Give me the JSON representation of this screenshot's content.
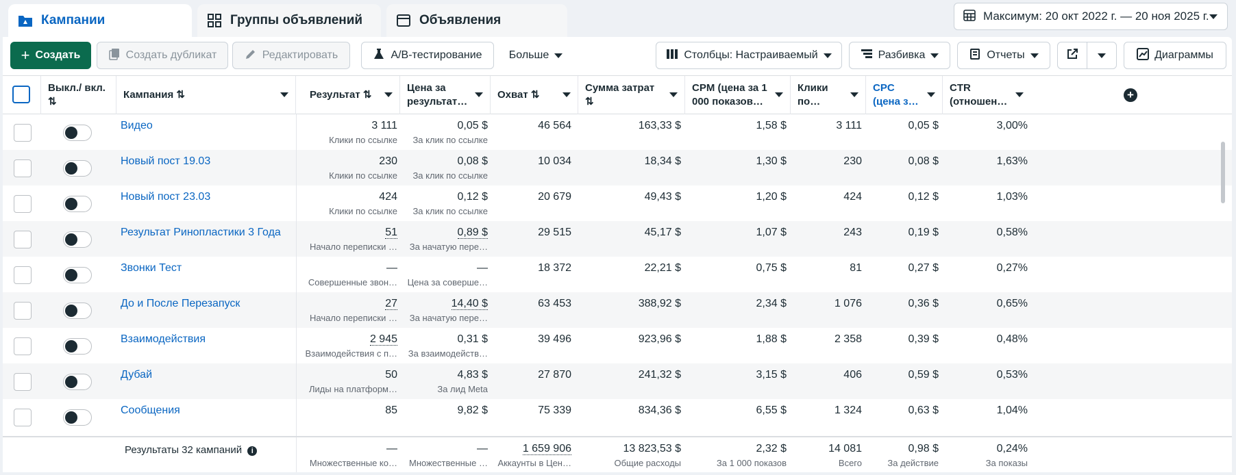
{
  "tabs": [
    {
      "label": "Кампании",
      "icon": "folder-icon"
    },
    {
      "label": "Группы объявлений",
      "icon": "grid-icon"
    },
    {
      "label": "Объявления",
      "icon": "window-icon"
    }
  ],
  "date_range": "Максимум: 20 окт 2022 г. — 20 ноя 2025 г.",
  "toolbar": {
    "create": "Создать",
    "duplicate": "Создать дубликат",
    "edit": "Редактировать",
    "ab_test": "A/B-тестирование",
    "more": "Больше",
    "columns": "Столбцы: Настраиваемый",
    "breakdown": "Разбивка",
    "reports": "Отчеты",
    "charts": "Диаграммы"
  },
  "columns": {
    "toggle": "Выкл./ вкл.",
    "campaign": "Кампания",
    "result": "Результат",
    "cost_per_result": "Цена за результат…",
    "reach": "Охват",
    "spend": "Сумма затрат",
    "cpm": "CPM (цена за 1 000 показов…",
    "clicks": "Клики по…",
    "cpc": "CPC (цена з…",
    "ctr": "CTR (отношен…"
  },
  "rows": [
    {
      "name": "Видео",
      "result": "3 111",
      "result_sub": "Клики по ссылке",
      "cpr": "0,05 $",
      "cpr_sub": "За клик по ссылке",
      "reach": "46 564",
      "spend": "163,33 $",
      "cpm": "1,58 $",
      "clicks": "3 111",
      "cpc": "0,05 $",
      "ctr": "3,00%"
    },
    {
      "name": "Новый пост 19.03",
      "result": "230",
      "result_sub": "Клики по ссылке",
      "cpr": "0,08 $",
      "cpr_sub": "За клик по ссылке",
      "reach": "10 034",
      "spend": "18,34 $",
      "cpm": "1,30 $",
      "clicks": "230",
      "cpc": "0,08 $",
      "ctr": "1,63%"
    },
    {
      "name": "Новый пост 23.03",
      "result": "424",
      "result_sub": "Клики по ссылке",
      "cpr": "0,12 $",
      "cpr_sub": "За клик по ссылке",
      "reach": "20 679",
      "spend": "49,43 $",
      "cpm": "1,20 $",
      "clicks": "424",
      "cpc": "0,12 $",
      "ctr": "1,03%"
    },
    {
      "name": "Результат Ринопластики 3 Года",
      "result": "51",
      "result_sub": "Начало переписки …",
      "cpr": "0,89 $",
      "cpr_sub": "За начатую пере…",
      "reach": "29 515",
      "spend": "45,17 $",
      "cpm": "1,07 $",
      "clicks": "243",
      "cpc": "0,19 $",
      "ctr": "0,58%"
    },
    {
      "name": "Звонки Тест",
      "result": "—",
      "result_sub": "Совершенные звон…",
      "cpr": "—",
      "cpr_sub": "Цена за соверше…",
      "reach": "18 372",
      "spend": "22,21 $",
      "cpm": "0,75 $",
      "clicks": "81",
      "cpc": "0,27 $",
      "ctr": "0,27%"
    },
    {
      "name": "До и После Перезапуск",
      "result": "27",
      "result_sub": "Начало переписки …",
      "cpr": "14,40 $",
      "cpr_sub": "За начатую пере…",
      "reach": "63 453",
      "spend": "388,92 $",
      "cpm": "2,34 $",
      "clicks": "1 076",
      "cpc": "0,36 $",
      "ctr": "0,65%"
    },
    {
      "name": "Взаимодействия",
      "result": "2 945",
      "result_sub": "Взаимодействия с п…",
      "cpr": "0,31 $",
      "cpr_sub": "За взаимодейств…",
      "reach": "39 496",
      "spend": "923,96 $",
      "cpm": "1,88 $",
      "clicks": "2 358",
      "cpc": "0,39 $",
      "ctr": "0,48%"
    },
    {
      "name": "Дубай",
      "result": "50",
      "result_sub": "Лиды на платформ…",
      "cpr": "4,83 $",
      "cpr_sub": "За лид Meta",
      "reach": "27 870",
      "spend": "241,32 $",
      "cpm": "3,15 $",
      "clicks": "406",
      "cpc": "0,59 $",
      "ctr": "0,53%"
    },
    {
      "name": "Сообщения",
      "result": "85",
      "result_sub": "",
      "cpr": "9,82 $",
      "cpr_sub": "",
      "reach": "75 339",
      "spend": "834,36 $",
      "cpm": "6,55 $",
      "clicks": "1 324",
      "cpc": "0,63 $",
      "ctr": "1,04%"
    }
  ],
  "totals": {
    "label": "Результаты 32 кампаний",
    "result": "—",
    "result_sub": "Множественные ко…",
    "cpr": "—",
    "cpr_sub": "Множественные …",
    "reach": "1 659 906",
    "reach_sub": "Аккаунты в Цен…",
    "spend": "13 823,53 $",
    "spend_sub": "Общие расходы",
    "cpm": "2,32 $",
    "cpm_sub": "За 1 000 показов",
    "clicks": "14 081",
    "clicks_sub": "Всего",
    "cpc": "0,98 $",
    "cpc_sub": "За действие",
    "ctr": "0,24%",
    "ctr_sub": "За показы"
  },
  "colors": {
    "accent": "#0a66c2",
    "primary": "#0b6b4e"
  }
}
